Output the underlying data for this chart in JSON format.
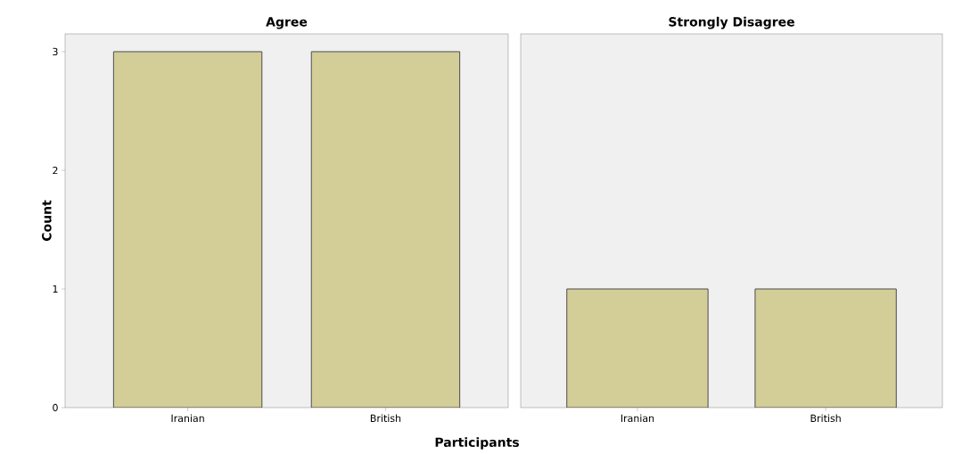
{
  "chart_data": [
    {
      "type": "bar",
      "title": "Agree",
      "xlabel": "Participants",
      "ylabel": "Count",
      "categories": [
        "Iranian",
        "British"
      ],
      "values": [
        3,
        3
      ],
      "color": "#d3cd97",
      "ylim": [
        0,
        3.15
      ],
      "yticks": [
        0,
        1,
        2,
        3
      ]
    },
    {
      "type": "bar",
      "title": "Strongly Disagree",
      "categories": [
        "Iranian",
        "British"
      ],
      "values": [
        1,
        1
      ],
      "color": "#d3cd97",
      "ylim": [
        0,
        3.15
      ],
      "tick_labels": "x"
    }
  ]
}
